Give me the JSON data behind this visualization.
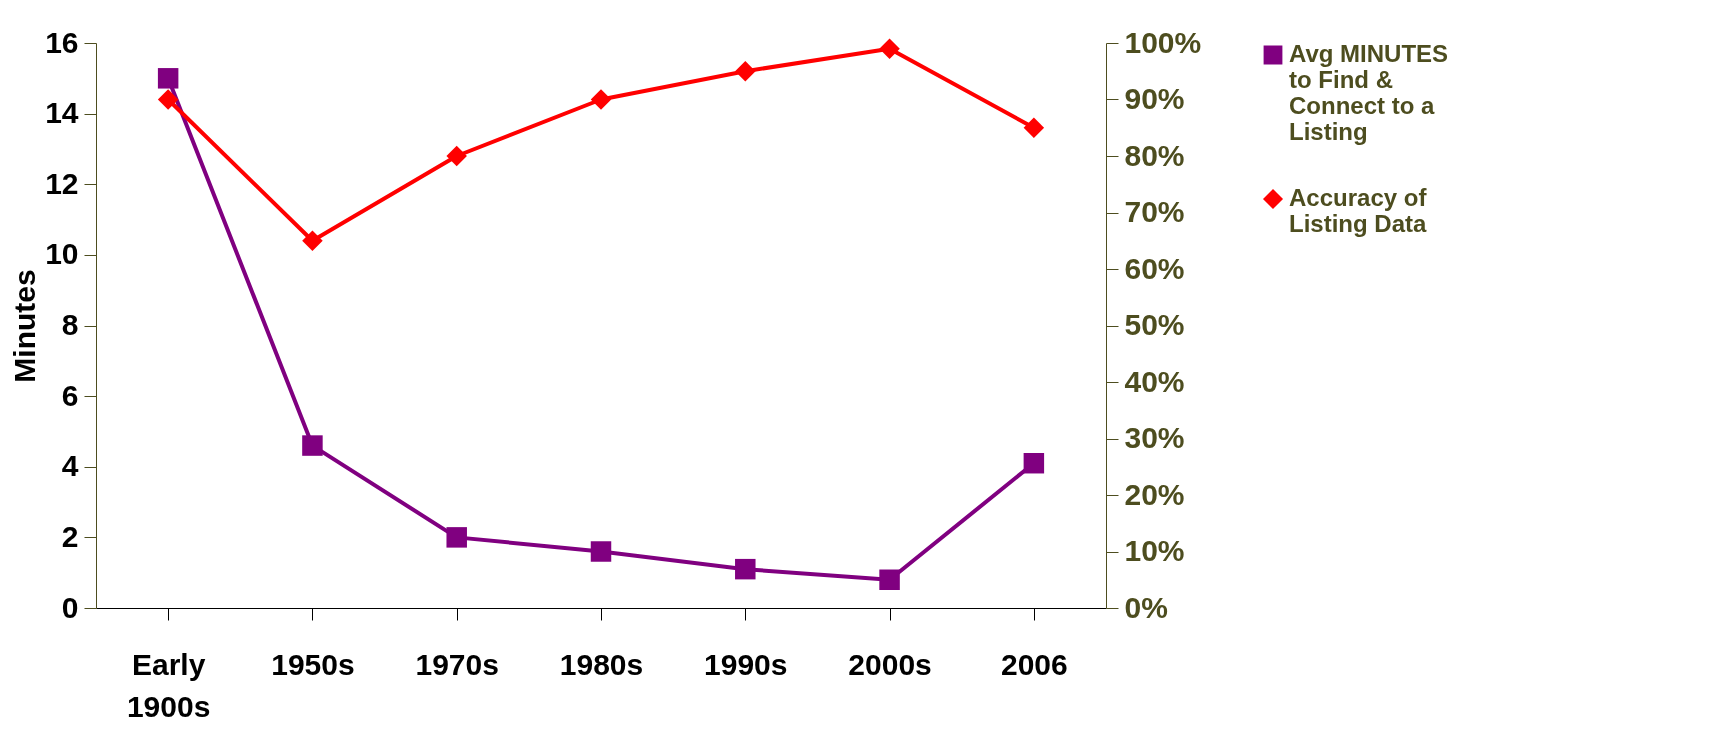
{
  "chart_data": {
    "type": "line",
    "ylabel": "Minutes",
    "categories": [
      "Early 1900s",
      "1950s",
      "1970s",
      "1980s",
      "1990s",
      "2000s",
      "2006"
    ],
    "ylim": [
      0,
      16
    ],
    "yticks": [
      0,
      2,
      4,
      6,
      8,
      10,
      12,
      14,
      16
    ],
    "y2lim": [
      0,
      100
    ],
    "y2ticks": [
      {
        "value": 0,
        "label": "0%"
      },
      {
        "value": 10,
        "label": "10%"
      },
      {
        "value": 20,
        "label": "20%"
      },
      {
        "value": 30,
        "label": "30%"
      },
      {
        "value": 40,
        "label": "40%"
      },
      {
        "value": 50,
        "label": "50%"
      },
      {
        "value": 60,
        "label": "60%"
      },
      {
        "value": 70,
        "label": "70%"
      },
      {
        "value": 80,
        "label": "80%"
      },
      {
        "value": 90,
        "label": "90%"
      },
      {
        "value": 100,
        "label": "100%"
      }
    ],
    "series": [
      {
        "name": "Avg MINUTES to Find & Connect to a Listing",
        "color": "#800080",
        "marker": "square",
        "values": [
          15,
          4.6,
          2.0,
          1.6,
          1.1,
          0.8,
          4.1
        ]
      },
      {
        "name": "Accuracy of Listing Data",
        "color": "#ff0000",
        "marker": "diamond",
        "axis": "y2",
        "values": [
          90,
          65,
          80,
          90,
          95,
          99,
          85
        ]
      }
    ],
    "grid": false,
    "legend": "right",
    "line_style": "solid"
  }
}
